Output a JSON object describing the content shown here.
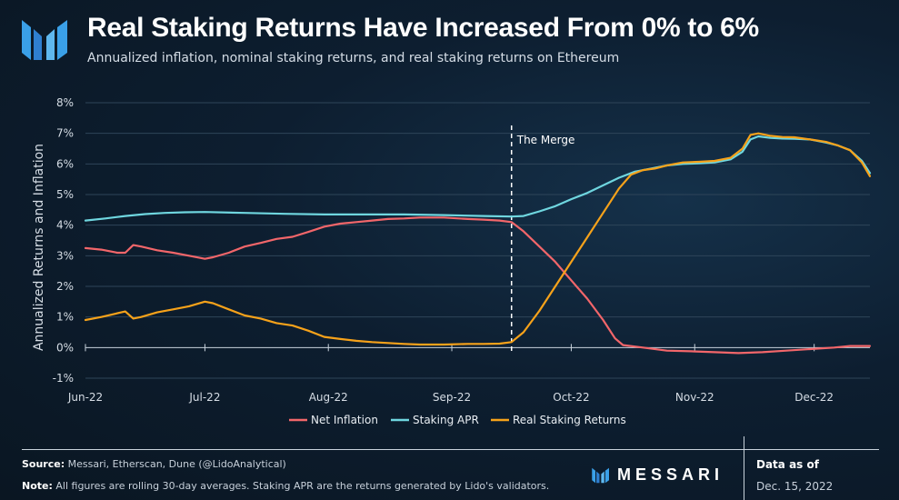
{
  "header": {
    "title": "Real Staking Returns Have Increased From 0% to 6%",
    "subtitle": "Annualized inflation, nominal staking returns, and real staking returns on Ethereum"
  },
  "footer": {
    "source_label": "Source:",
    "source_text": " Messari, Etherscan, Dune (@LidoAnalytical)",
    "note_label": "Note:",
    "note_text": " All figures are rolling 30-day averages. Staking APR are the returns generated by Lido's validators.",
    "brand": "MESSARI",
    "data_as_of_label": "Data as of",
    "data_as_of_date": "Dec. 15, 2022"
  },
  "colors": {
    "net_inflation": "#f2666a",
    "staking_apr": "#6fd6df",
    "real_returns": "#f6a21a",
    "grid": "#2e4559",
    "axis_text": "#d6dde5"
  },
  "chart_data": {
    "type": "line",
    "title": "Real Staking Returns Have Increased From 0% to 6%",
    "xlabel": "",
    "ylabel": "Annualized Returns and Inflation",
    "x_domain": [
      0,
      197
    ],
    "x_ticks": [
      {
        "day": 0,
        "label": "Jun-22"
      },
      {
        "day": 30,
        "label": "Jul-22"
      },
      {
        "day": 61,
        "label": "Aug-22"
      },
      {
        "day": 92,
        "label": "Sep-22"
      },
      {
        "day": 122,
        "label": "Oct-22"
      },
      {
        "day": 153,
        "label": "Nov-22"
      },
      {
        "day": 183,
        "label": "Dec-22"
      }
    ],
    "y_ticks": [
      -1,
      0,
      1,
      2,
      3,
      4,
      5,
      6,
      7,
      8
    ],
    "y_tick_labels": [
      "-1%",
      "0%",
      "1%",
      "2%",
      "3%",
      "4%",
      "5%",
      "6%",
      "7%",
      "8%"
    ],
    "ylim": [
      -1,
      8
    ],
    "grid": true,
    "legend": "bottom-center",
    "annotation": {
      "day": 107,
      "label": "The Merge"
    },
    "series": [
      {
        "name": "Net Inflation",
        "color_key": "net_inflation",
        "points": [
          [
            0,
            3.25
          ],
          [
            4,
            3.2
          ],
          [
            8,
            3.1
          ],
          [
            10,
            3.1
          ],
          [
            12,
            3.35
          ],
          [
            14,
            3.3
          ],
          [
            18,
            3.18
          ],
          [
            22,
            3.1
          ],
          [
            26,
            3.0
          ],
          [
            30,
            2.9
          ],
          [
            32,
            2.95
          ],
          [
            36,
            3.1
          ],
          [
            40,
            3.3
          ],
          [
            44,
            3.42
          ],
          [
            48,
            3.55
          ],
          [
            52,
            3.62
          ],
          [
            56,
            3.78
          ],
          [
            60,
            3.95
          ],
          [
            64,
            4.05
          ],
          [
            68,
            4.1
          ],
          [
            72,
            4.15
          ],
          [
            76,
            4.2
          ],
          [
            80,
            4.22
          ],
          [
            84,
            4.25
          ],
          [
            90,
            4.25
          ],
          [
            96,
            4.2
          ],
          [
            100,
            4.18
          ],
          [
            104,
            4.15
          ],
          [
            107,
            4.1
          ],
          [
            110,
            3.8
          ],
          [
            114,
            3.3
          ],
          [
            118,
            2.8
          ],
          [
            122,
            2.2
          ],
          [
            126,
            1.6
          ],
          [
            130,
            0.9
          ],
          [
            133,
            0.3
          ],
          [
            135,
            0.08
          ],
          [
            140,
            0.0
          ],
          [
            146,
            -0.1
          ],
          [
            152,
            -0.12
          ],
          [
            158,
            -0.15
          ],
          [
            164,
            -0.18
          ],
          [
            170,
            -0.15
          ],
          [
            176,
            -0.1
          ],
          [
            182,
            -0.05
          ],
          [
            188,
            0.0
          ],
          [
            192,
            0.05
          ],
          [
            197,
            0.05
          ]
        ]
      },
      {
        "name": "Staking APR",
        "color_key": "staking_apr",
        "points": [
          [
            0,
            4.15
          ],
          [
            5,
            4.22
          ],
          [
            10,
            4.3
          ],
          [
            15,
            4.36
          ],
          [
            20,
            4.4
          ],
          [
            25,
            4.42
          ],
          [
            30,
            4.43
          ],
          [
            40,
            4.4
          ],
          [
            50,
            4.37
          ],
          [
            60,
            4.35
          ],
          [
            70,
            4.35
          ],
          [
            80,
            4.35
          ],
          [
            90,
            4.33
          ],
          [
            100,
            4.3
          ],
          [
            107,
            4.28
          ],
          [
            110,
            4.3
          ],
          [
            114,
            4.45
          ],
          [
            118,
            4.62
          ],
          [
            122,
            4.85
          ],
          [
            126,
            5.05
          ],
          [
            130,
            5.3
          ],
          [
            134,
            5.55
          ],
          [
            138,
            5.75
          ],
          [
            142,
            5.85
          ],
          [
            146,
            5.95
          ],
          [
            150,
            6.0
          ],
          [
            154,
            6.02
          ],
          [
            158,
            6.05
          ],
          [
            162,
            6.15
          ],
          [
            165,
            6.4
          ],
          [
            167,
            6.8
          ],
          [
            169,
            6.9
          ],
          [
            172,
            6.85
          ],
          [
            175,
            6.83
          ],
          [
            178,
            6.82
          ],
          [
            182,
            6.8
          ],
          [
            186,
            6.7
          ],
          [
            189,
            6.6
          ],
          [
            192,
            6.45
          ],
          [
            195,
            6.1
          ],
          [
            197,
            5.7
          ]
        ]
      },
      {
        "name": "Real Staking Returns",
        "color_key": "real_returns",
        "points": [
          [
            0,
            0.9
          ],
          [
            4,
            1.0
          ],
          [
            8,
            1.12
          ],
          [
            10,
            1.18
          ],
          [
            12,
            0.95
          ],
          [
            14,
            1.0
          ],
          [
            18,
            1.15
          ],
          [
            22,
            1.25
          ],
          [
            26,
            1.35
          ],
          [
            30,
            1.5
          ],
          [
            32,
            1.45
          ],
          [
            36,
            1.25
          ],
          [
            40,
            1.05
          ],
          [
            44,
            0.95
          ],
          [
            48,
            0.8
          ],
          [
            52,
            0.72
          ],
          [
            56,
            0.55
          ],
          [
            60,
            0.35
          ],
          [
            64,
            0.28
          ],
          [
            68,
            0.22
          ],
          [
            72,
            0.18
          ],
          [
            76,
            0.15
          ],
          [
            80,
            0.12
          ],
          [
            84,
            0.1
          ],
          [
            90,
            0.1
          ],
          [
            96,
            0.12
          ],
          [
            100,
            0.12
          ],
          [
            104,
            0.13
          ],
          [
            107,
            0.18
          ],
          [
            110,
            0.5
          ],
          [
            114,
            1.2
          ],
          [
            118,
            2.0
          ],
          [
            122,
            2.8
          ],
          [
            126,
            3.6
          ],
          [
            130,
            4.4
          ],
          [
            134,
            5.2
          ],
          [
            137,
            5.65
          ],
          [
            140,
            5.8
          ],
          [
            143,
            5.85
          ],
          [
            146,
            5.95
          ],
          [
            150,
            6.05
          ],
          [
            154,
            6.07
          ],
          [
            158,
            6.1
          ],
          [
            162,
            6.2
          ],
          [
            165,
            6.5
          ],
          [
            167,
            6.95
          ],
          [
            169,
            7.0
          ],
          [
            172,
            6.92
          ],
          [
            175,
            6.88
          ],
          [
            178,
            6.87
          ],
          [
            182,
            6.8
          ],
          [
            186,
            6.72
          ],
          [
            189,
            6.6
          ],
          [
            192,
            6.45
          ],
          [
            195,
            6.05
          ],
          [
            197,
            5.6
          ]
        ]
      }
    ]
  }
}
